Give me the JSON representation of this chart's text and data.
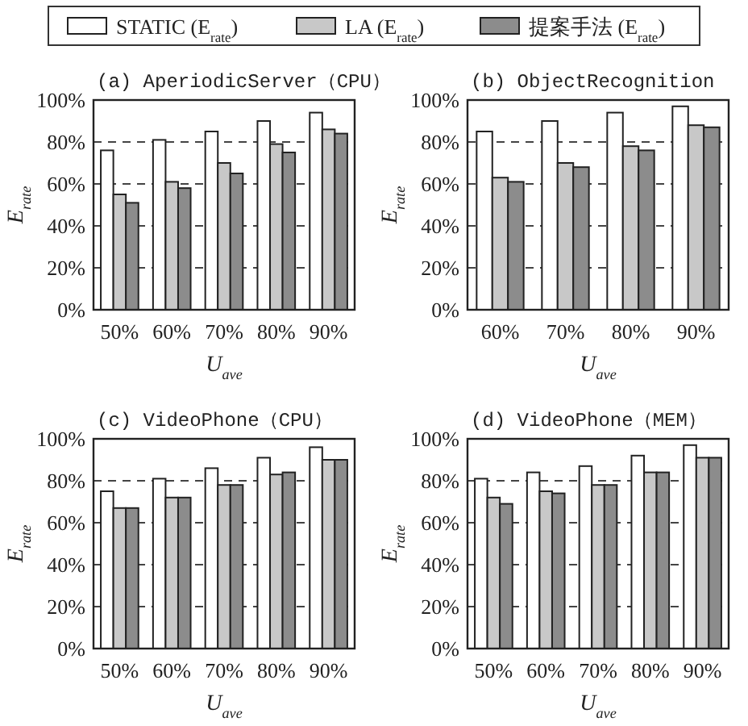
{
  "chart_data": [
    {
      "type": "bar",
      "title": "(a) AperiodicServer（CPU）",
      "xlabel": "U$_{ave}$",
      "ylabel": "E$_{rate}$",
      "categories": [
        "50%",
        "60%",
        "70%",
        "80%",
        "90%"
      ],
      "legend": "top",
      "grid": "y",
      "ylim": [
        0,
        100
      ],
      "yticks": [
        {
          "value": 0,
          "label": "0%"
        },
        {
          "value": 20,
          "label": "20%"
        },
        {
          "value": 40,
          "label": "40%"
        },
        {
          "value": 60,
          "label": "60%"
        },
        {
          "value": 80,
          "label": "80%"
        },
        {
          "value": 100,
          "label": "100%"
        }
      ],
      "series": [
        {
          "name": "STATIC (E$_{rate}$)",
          "color": "#ffffff",
          "values": [
            76,
            81,
            85,
            90,
            94
          ]
        },
        {
          "name": "LA (E$_{rate}$)",
          "color": "#c8c8c8",
          "values": [
            55,
            61,
            70,
            79,
            86
          ]
        },
        {
          "name": "提案手法 (E$_{rate}$)",
          "color": "#8c8c8c",
          "values": [
            51,
            58,
            65,
            75,
            84
          ]
        }
      ]
    },
    {
      "type": "bar",
      "title": "(b) ObjectRecognition",
      "xlabel": "U$_{ave}$",
      "ylabel": "E$_{rate}$",
      "categories": [
        "60%",
        "70%",
        "80%",
        "90%"
      ],
      "grid": "y",
      "ylim": [
        0,
        100
      ],
      "yticks": [
        {
          "value": 0,
          "label": "0%"
        },
        {
          "value": 20,
          "label": "20%"
        },
        {
          "value": 40,
          "label": "40%"
        },
        {
          "value": 60,
          "label": "60%"
        },
        {
          "value": 80,
          "label": "80%"
        },
        {
          "value": 100,
          "label": "100%"
        }
      ],
      "series": [
        {
          "color": "#ffffff",
          "values": [
            85,
            90,
            94,
            97
          ]
        },
        {
          "color": "#c8c8c8",
          "values": [
            63,
            70,
            78,
            88
          ]
        },
        {
          "color": "#8c8c8c",
          "values": [
            61,
            68,
            76,
            87
          ]
        }
      ]
    },
    {
      "type": "bar",
      "title": "(c) VideoPhone（CPU）",
      "xlabel": "U$_{ave}$",
      "ylabel": "E$_{rate}$",
      "categories": [
        "50%",
        "60%",
        "70%",
        "80%",
        "90%"
      ],
      "grid": "y",
      "ylim": [
        0,
        100
      ],
      "yticks": [
        {
          "value": 0,
          "label": "0%"
        },
        {
          "value": 20,
          "label": "20%"
        },
        {
          "value": 40,
          "label": "40%"
        },
        {
          "value": 60,
          "label": "60%"
        },
        {
          "value": 80,
          "label": "80%"
        },
        {
          "value": 100,
          "label": "100%"
        }
      ],
      "series": [
        {
          "color": "#ffffff",
          "values": [
            75,
            81,
            86,
            91,
            96
          ]
        },
        {
          "color": "#c8c8c8",
          "values": [
            67,
            72,
            78,
            83,
            90
          ]
        },
        {
          "color": "#8c8c8c",
          "values": [
            67,
            72,
            78,
            84,
            90
          ]
        }
      ]
    },
    {
      "type": "bar",
      "title": "(d) VideoPhone（MEM）",
      "xlabel": "U$_{ave}$",
      "ylabel": "E$_{rate}$",
      "categories": [
        "50%",
        "60%",
        "70%",
        "80%",
        "90%"
      ],
      "grid": "y",
      "ylim": [
        0,
        100
      ],
      "yticks": [
        {
          "value": 0,
          "label": "0%"
        },
        {
          "value": 20,
          "label": "20%"
        },
        {
          "value": 40,
          "label": "40%"
        },
        {
          "value": 60,
          "label": "60%"
        },
        {
          "value": 80,
          "label": "80%"
        },
        {
          "value": 100,
          "label": "100%"
        }
      ],
      "series": [
        {
          "color": "#ffffff",
          "values": [
            81,
            84,
            87,
            92,
            97
          ]
        },
        {
          "color": "#c8c8c8",
          "values": [
            72,
            75,
            78,
            84,
            91
          ]
        },
        {
          "color": "#8c8c8c",
          "values": [
            69,
            74,
            78,
            84,
            91
          ]
        }
      ]
    }
  ]
}
